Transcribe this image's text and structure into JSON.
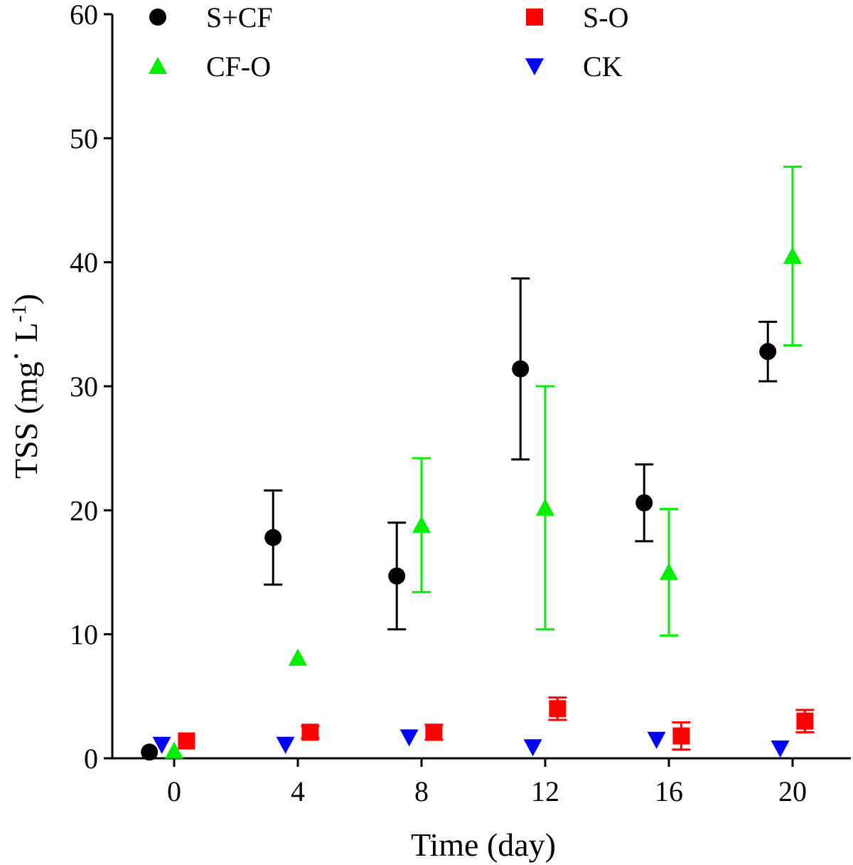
{
  "chart_data": {
    "type": "scatter",
    "title": "",
    "xlabel": "Time (day)",
    "ylabel": {
      "main": "TSS (mg",
      "dot": "·",
      "unit": " L",
      "sup": "-1",
      "close": ")"
    },
    "xlim": [
      -2,
      22
    ],
    "ylim": [
      0,
      60
    ],
    "xticks": [
      "0",
      "4",
      "8",
      "12",
      "16",
      "20"
    ],
    "xtick_values": [
      0,
      4,
      8,
      12,
      16,
      20
    ],
    "yticks": [
      "0",
      "10",
      "20",
      "30",
      "40",
      "50",
      "60"
    ],
    "ytick_values": [
      0,
      10,
      20,
      30,
      40,
      50,
      60
    ],
    "grid": false,
    "legend": "top",
    "series": [
      {
        "name": "S+CF",
        "marker": "circle",
        "color": "#000000",
        "x": [
          -0.8,
          3.2,
          7.2,
          11.2,
          15.2,
          19.2
        ],
        "y": [
          0.5,
          17.8,
          14.7,
          31.4,
          20.6,
          32.8
        ],
        "err": [
          0,
          3.8,
          4.3,
          7.3,
          3.1,
          2.4
        ]
      },
      {
        "name": "S-O",
        "marker": "square",
        "color": "#ff0000",
        "x": [
          0.4,
          4.4,
          8.4,
          12.4,
          16.4,
          20.4
        ],
        "y": [
          1.4,
          2.1,
          2.1,
          4.0,
          1.8,
          3.0
        ],
        "err": [
          0,
          0.5,
          0.6,
          0.9,
          1.1,
          0.9
        ]
      },
      {
        "name": "CF-O",
        "marker": "triangle-up",
        "color": "#00ee00",
        "x": [
          0,
          4,
          8,
          12,
          16,
          20
        ],
        "y": [
          0.6,
          8.1,
          18.8,
          20.2,
          15.0,
          40.5
        ],
        "err": [
          0,
          0,
          5.4,
          9.8,
          5.1,
          7.2
        ]
      },
      {
        "name": "CK",
        "marker": "triangle-down",
        "color": "#0000ff",
        "x": [
          -0.4,
          3.6,
          7.6,
          11.6,
          15.6,
          19.6
        ],
        "y": [
          1.1,
          1.1,
          1.7,
          0.9,
          1.5,
          0.8
        ],
        "err": [
          0,
          0,
          0,
          0,
          0,
          0
        ]
      }
    ]
  }
}
